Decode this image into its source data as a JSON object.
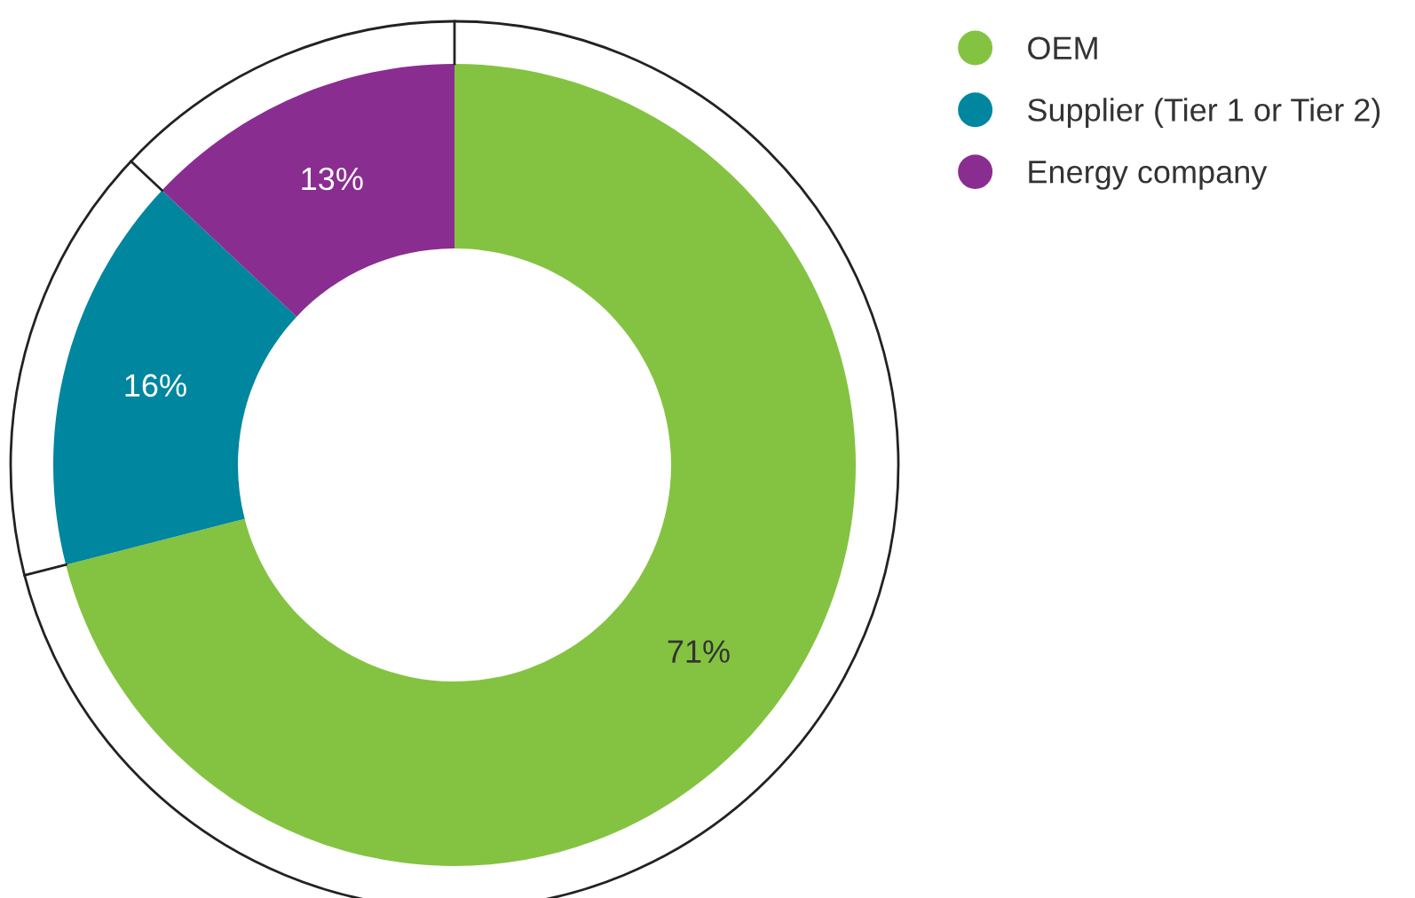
{
  "chart_data": {
    "type": "donut",
    "categories": [
      "OEM",
      "Supplier (Tier 1 or Tier 2)",
      "Energy company"
    ],
    "values": [
      71,
      16,
      13
    ],
    "colors": [
      "#84c341",
      "#00869f",
      "#8a2d91"
    ],
    "value_labels": [
      "71%",
      "16%",
      "13%"
    ],
    "legend": "top right"
  }
}
